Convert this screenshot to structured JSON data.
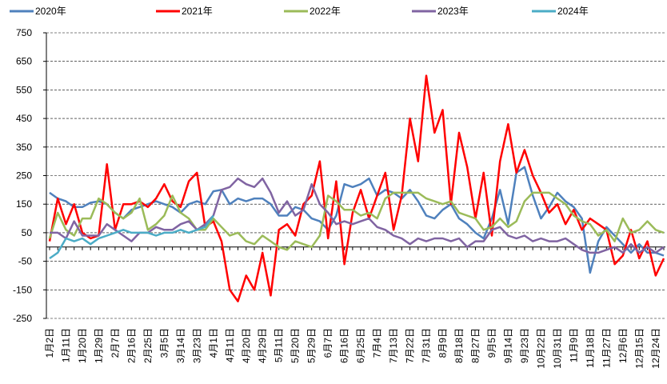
{
  "chart_data": {
    "type": "line",
    "legend": "top",
    "grid": true,
    "ylim": [
      -250,
      750
    ],
    "yticks": [
      -250,
      -150,
      -50,
      50,
      150,
      250,
      350,
      450,
      550,
      650,
      750
    ],
    "categories": [
      "1月2日",
      null,
      "1月11日",
      null,
      "1月20日",
      null,
      "1月29日",
      null,
      "2月7日",
      null,
      "2月16日",
      null,
      "2月25日",
      null,
      "3月5日",
      null,
      "3月14日",
      null,
      "3月23日",
      null,
      "4月1日",
      null,
      "4月11日",
      null,
      "4月20日",
      null,
      "4月29日",
      null,
      "5月11日",
      null,
      "5月20日",
      null,
      "5月29日",
      null,
      "6月7日",
      null,
      "6月16日",
      null,
      "6月25日",
      null,
      "7月4日",
      null,
      "7月13日",
      null,
      "7月22日",
      null,
      "7月31日",
      null,
      "8月9日",
      null,
      "8月18日",
      null,
      "8月27日",
      null,
      "9月5日",
      null,
      "9月14日",
      null,
      "9月23日",
      null,
      "10月22日",
      null,
      "10月31日",
      null,
      "11月9日",
      null,
      "11月18日",
      null,
      "11月27日",
      null,
      "12月6日",
      null,
      "12月15日",
      null,
      "12月24日",
      null
    ],
    "series": [
      {
        "name": "2020年",
        "color": "#4f81bd",
        "values": [
          190,
          170,
          160,
          140,
          140,
          155,
          160,
          150,
          120,
          100,
          130,
          140,
          150,
          160,
          150,
          140,
          120,
          150,
          160,
          150,
          195,
          200,
          150,
          170,
          160,
          170,
          170,
          150,
          110,
          110,
          140,
          130,
          100,
          90,
          60,
          110,
          220,
          210,
          220,
          240,
          180,
          200,
          190,
          170,
          200,
          160,
          110,
          100,
          130,
          150,
          100,
          80,
          50,
          30,
          100,
          200,
          80,
          260,
          280,
          180,
          100,
          140,
          190,
          160,
          140,
          100,
          -90,
          20,
          70,
          40,
          10,
          -20,
          10,
          -20,
          -20,
          -30
        ]
      },
      {
        "name": "2021年",
        "color": "#ff0000",
        "values": [
          20,
          170,
          80,
          150,
          50,
          30,
          40,
          290,
          60,
          150,
          150,
          160,
          140,
          170,
          220,
          160,
          140,
          230,
          260,
          70,
          90,
          20,
          -150,
          -190,
          -100,
          -150,
          -20,
          -170,
          60,
          80,
          40,
          150,
          180,
          300,
          30,
          230,
          -60,
          120,
          200,
          100,
          180,
          260,
          60,
          180,
          450,
          300,
          600,
          400,
          480,
          150,
          400,
          280,
          100,
          260,
          40,
          300,
          430,
          260,
          340,
          250,
          190,
          120,
          150,
          80,
          130,
          60,
          100,
          80,
          60,
          -60,
          -30,
          60,
          -40,
          20,
          -100,
          -40
        ]
      },
      {
        "name": "2022年",
        "color": "#9bbb59",
        "values": [
          30,
          120,
          60,
          40,
          100,
          100,
          170,
          150,
          120,
          100,
          120,
          170,
          60,
          80,
          110,
          180,
          120,
          100,
          60,
          60,
          100,
          70,
          40,
          50,
          20,
          10,
          40,
          20,
          0,
          -10,
          20,
          10,
          0,
          40,
          180,
          160,
          130,
          130,
          110,
          120,
          100,
          170,
          190,
          190,
          190,
          190,
          170,
          160,
          150,
          160,
          120,
          110,
          100,
          60,
          70,
          100,
          70,
          90,
          160,
          190,
          190,
          190,
          170,
          150,
          110,
          90,
          80,
          40,
          60,
          20,
          100,
          50,
          60,
          90,
          60,
          50
        ]
      },
      {
        "name": "2023年",
        "color": "#8064a2",
        "values": [
          50,
          50,
          30,
          90,
          40,
          40,
          40,
          80,
          60,
          40,
          20,
          50,
          50,
          70,
          60,
          60,
          80,
          90,
          60,
          80,
          110,
          200,
          210,
          240,
          220,
          210,
          240,
          190,
          120,
          160,
          110,
          130,
          220,
          150,
          120,
          80,
          90,
          80,
          90,
          100,
          70,
          60,
          40,
          30,
          10,
          30,
          20,
          30,
          30,
          20,
          30,
          0,
          20,
          20,
          60,
          70,
          40,
          30,
          40,
          20,
          30,
          20,
          20,
          30,
          10,
          -10,
          -20,
          -20,
          -10,
          0,
          -20,
          10,
          -20,
          0,
          -20,
          0
        ]
      },
      {
        "name": "2024年",
        "color": "#4bacc6",
        "values": [
          -40,
          -20,
          30,
          20,
          30,
          10,
          30,
          40,
          50,
          60,
          50,
          50,
          50,
          40,
          50,
          50,
          60,
          50,
          60,
          70,
          110,
          null,
          null,
          null,
          null,
          null,
          null,
          null,
          null,
          null,
          null,
          null,
          null,
          null,
          null,
          null,
          null,
          null,
          null,
          null,
          null,
          null,
          null,
          null,
          null,
          null,
          null,
          null,
          null,
          null,
          null,
          null,
          null,
          null,
          null,
          null,
          null,
          null,
          null,
          null,
          null,
          null,
          null,
          null,
          null,
          null,
          null,
          null,
          null,
          null,
          null,
          null,
          null,
          null,
          null,
          null
        ]
      }
    ]
  }
}
